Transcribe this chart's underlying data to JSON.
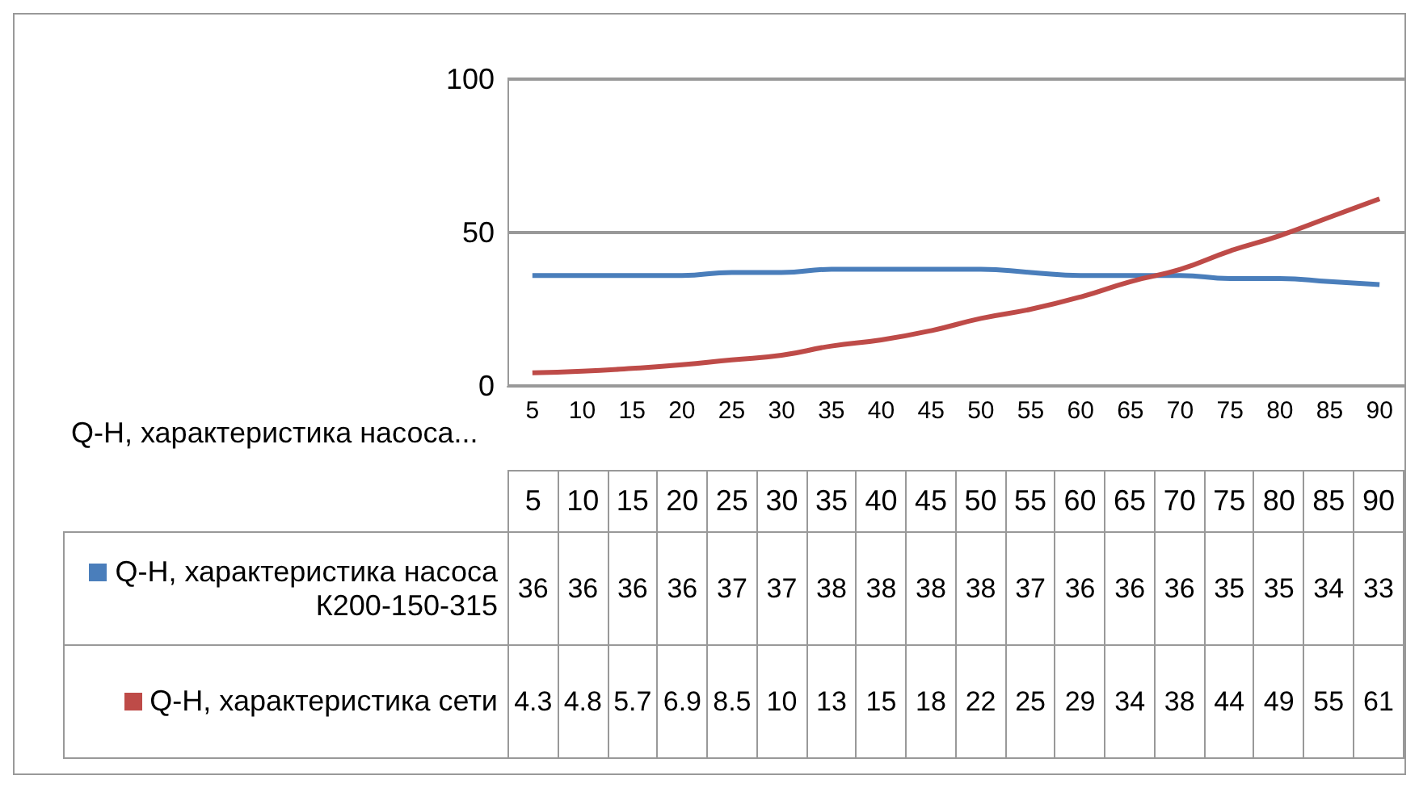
{
  "chart_data": {
    "type": "line",
    "categories": [
      "5",
      "10",
      "15",
      "20",
      "25",
      "30",
      "35",
      "40",
      "45",
      "50",
      "55",
      "60",
      "65",
      "70",
      "75",
      "80",
      "85",
      "90"
    ],
    "series": [
      {
        "name": "Q-H, характеристика насоса К200-150-315",
        "color": "#4a7ebb",
        "values": [
          36,
          36,
          36,
          36,
          37,
          37,
          38,
          38,
          38,
          38,
          37,
          36,
          36,
          36,
          35,
          35,
          34,
          33
        ]
      },
      {
        "name": "Q-H, характеристика сети",
        "color": "#be4b48",
        "values": [
          4.3,
          4.8,
          5.7,
          6.9,
          8.5,
          10,
          13,
          15,
          18,
          22,
          25,
          29,
          34,
          38,
          44,
          49,
          55,
          61
        ]
      }
    ],
    "ylim": [
      0,
      100
    ],
    "yticks": [
      0,
      50,
      100
    ],
    "grid": "y",
    "legend": "bottom",
    "marker": "none",
    "data_labels": true,
    "annotations": [
      "Q-H, характеристика насоса..."
    ]
  }
}
